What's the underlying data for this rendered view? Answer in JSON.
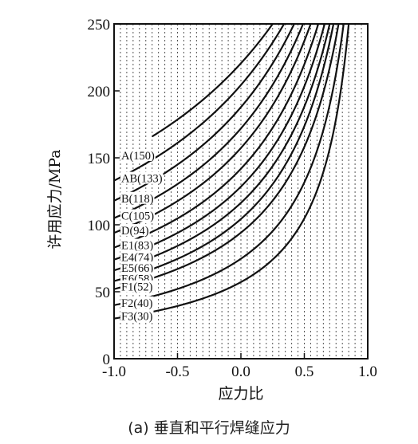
{
  "chart_data": {
    "type": "line",
    "xlabel": "应力比",
    "ylabel": "许用应力/MPa",
    "xlim": [
      -1.0,
      1.0
    ],
    "ylim": [
      0,
      250
    ],
    "x_ticks": [
      "-1.0",
      "-0.5",
      "0.0",
      "0.5",
      "1.0"
    ],
    "y_ticks": [
      "0",
      "50",
      "100",
      "150",
      "200",
      "250"
    ],
    "grid": "vertical dotted lines",
    "series": [
      {
        "name": "A(150)",
        "value_at_minus1": 150
      },
      {
        "name": "AB(133)",
        "value_at_minus1": 133
      },
      {
        "name": "B(118)",
        "value_at_minus1": 118
      },
      {
        "name": "C(105)",
        "value_at_minus1": 105
      },
      {
        "name": "D(94)",
        "value_at_minus1": 94
      },
      {
        "name": "E1(83)",
        "value_at_minus1": 83
      },
      {
        "name": "E4(74)",
        "value_at_minus1": 74
      },
      {
        "name": "E5(66)",
        "value_at_minus1": 66
      },
      {
        "name": "E6(58)",
        "value_at_minus1": 58
      },
      {
        "name": "F1(52)",
        "value_at_minus1": 52
      },
      {
        "name": "F2(40)",
        "value_at_minus1": 40
      },
      {
        "name": "F3(30)",
        "value_at_minus1": 30
      }
    ],
    "caption": "(a) 垂直和平行焊缝应力"
  }
}
